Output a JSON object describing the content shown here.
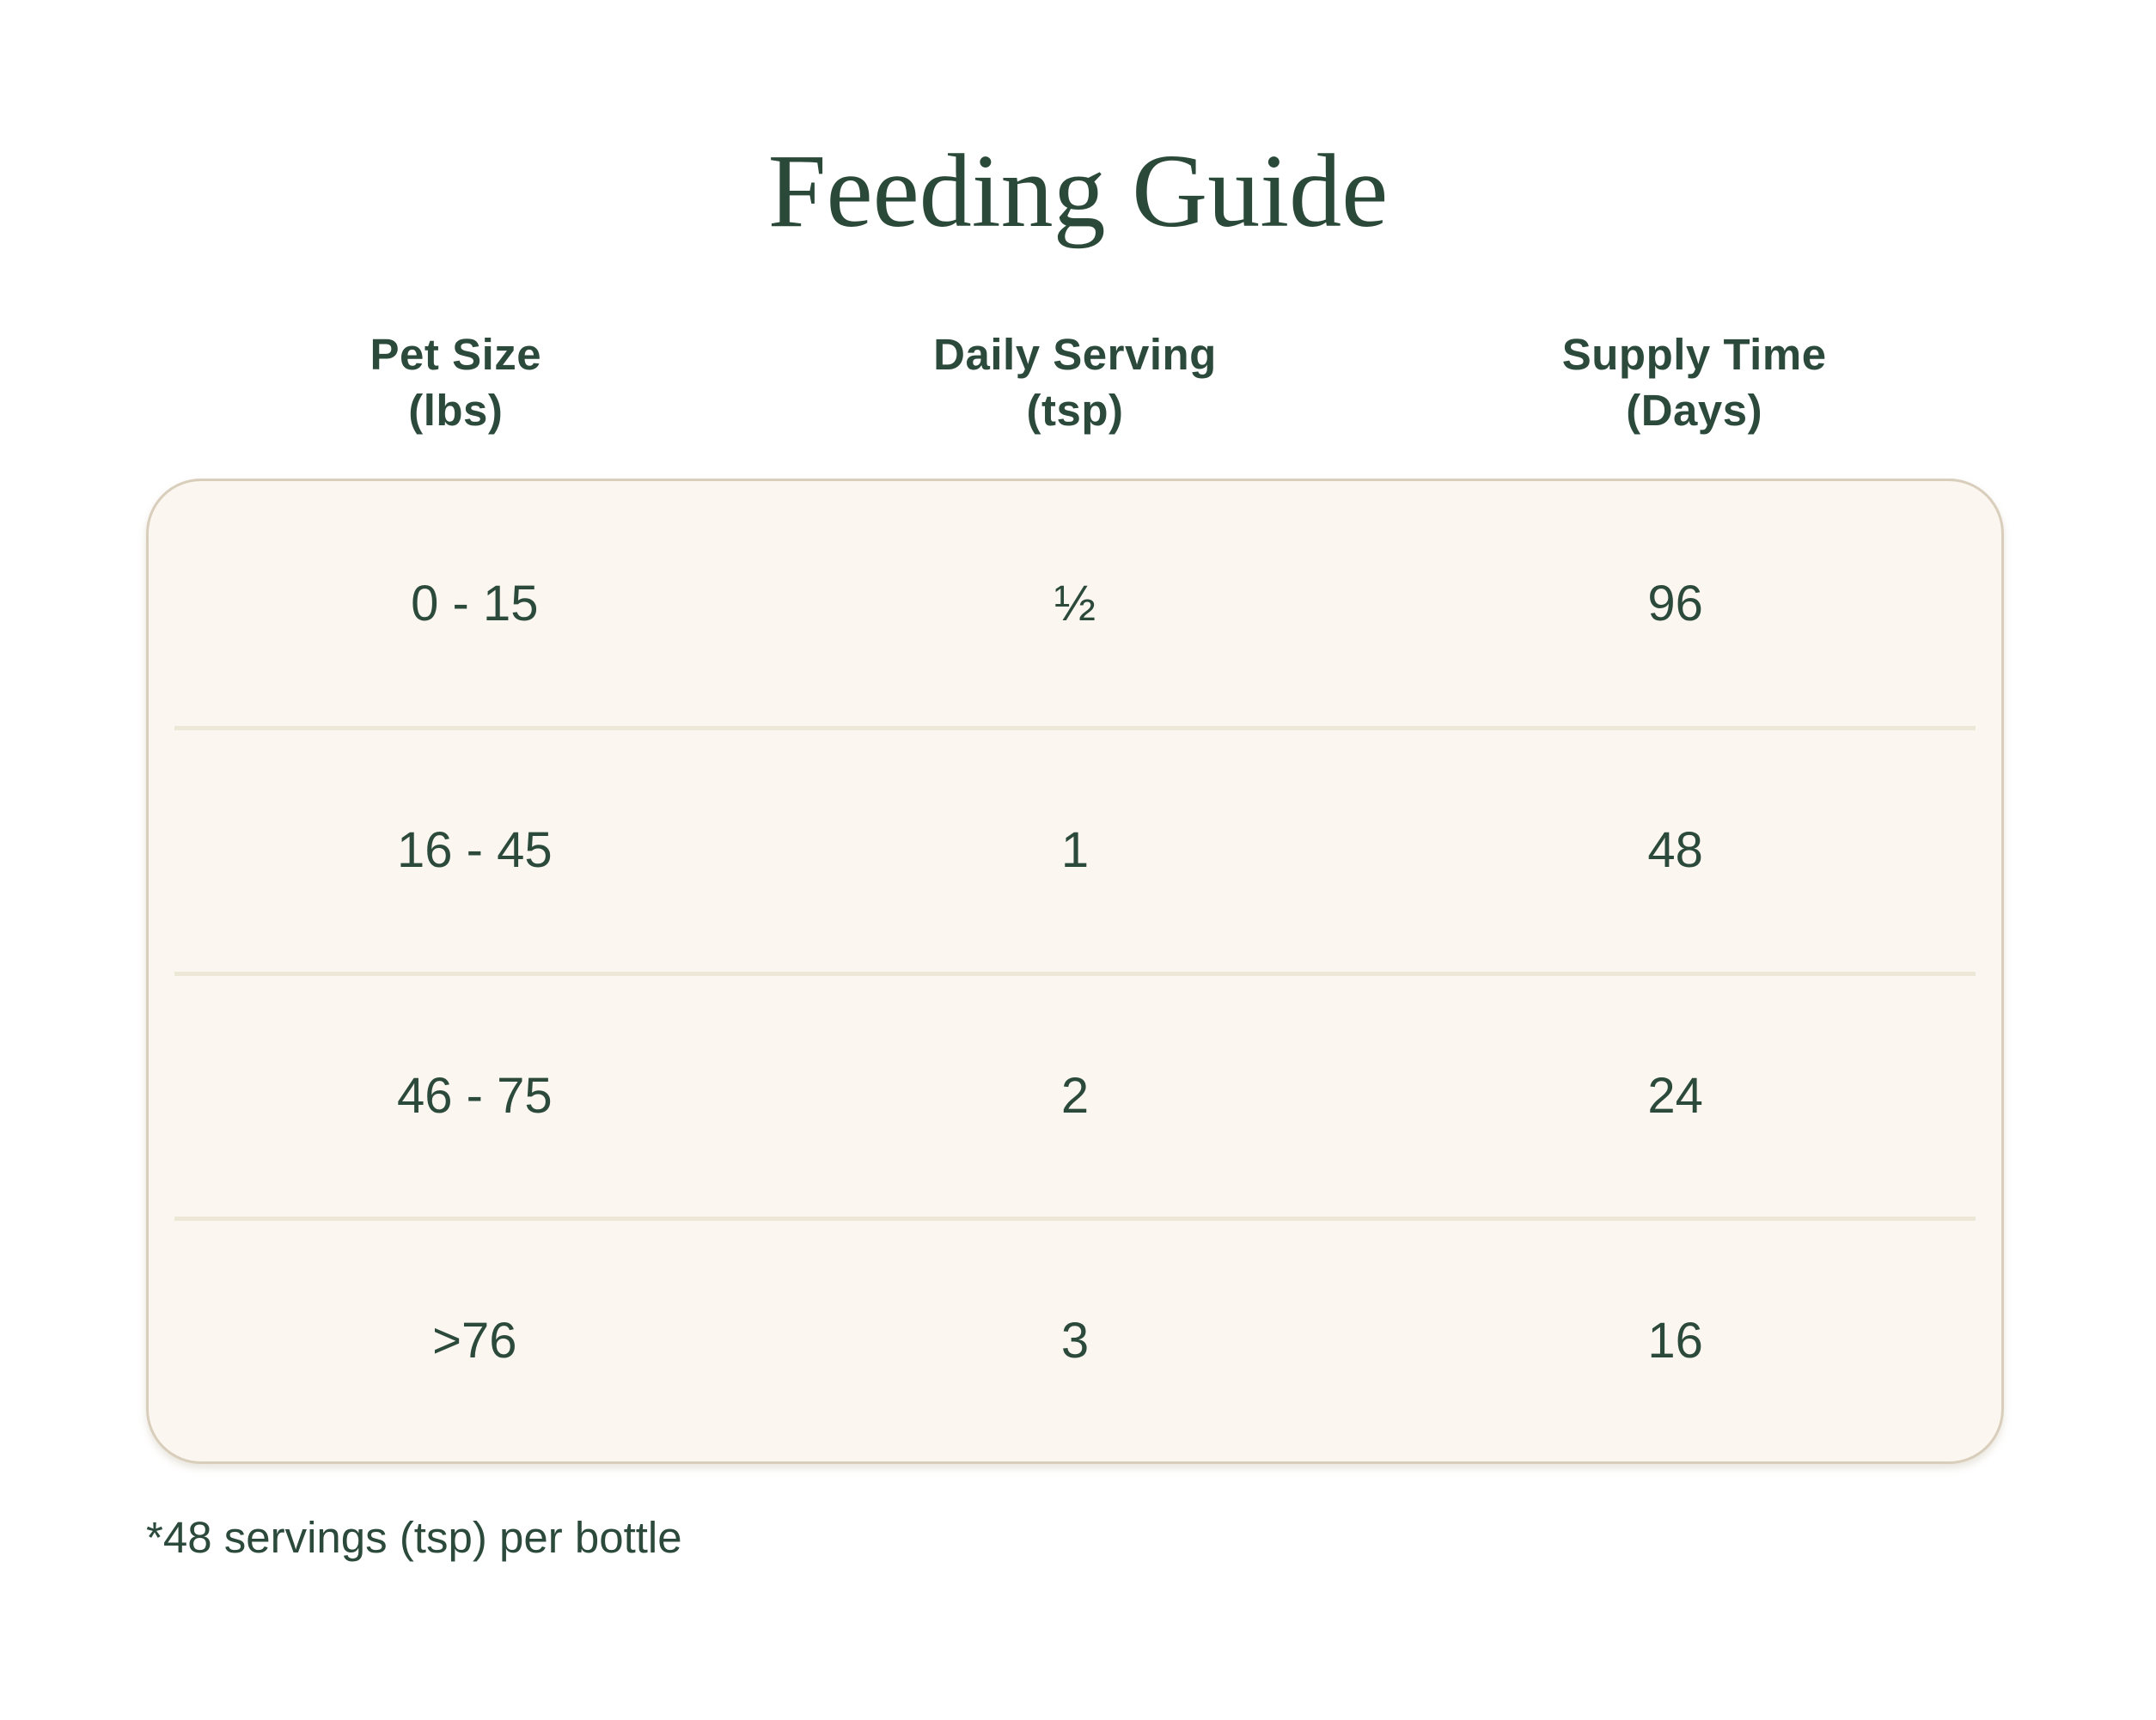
{
  "title": "Feeding Guide",
  "chart_data": {
    "type": "table",
    "title": "Feeding Guide",
    "columns": [
      "Pet Size (lbs)",
      "Daily Serving (tsp)",
      "Supply Time (Days)"
    ],
    "rows": [
      [
        "0 - 15",
        "½",
        "96"
      ],
      [
        "16 - 45",
        "1",
        "48"
      ],
      [
        "46 - 75",
        "2",
        "24"
      ],
      [
        ">76",
        "3",
        "16"
      ]
    ],
    "footnote": "*48 servings (tsp) per bottle"
  },
  "headers": [
    {
      "line1": "Pet Size",
      "line2": "(lbs)"
    },
    {
      "line1": "Daily Serving",
      "line2": "(tsp)"
    },
    {
      "line1": "Supply Time",
      "line2": "(Days)"
    }
  ],
  "rows": [
    {
      "cells": [
        "0 - 15",
        "½",
        "96"
      ]
    },
    {
      "cells": [
        "16 - 45",
        "1",
        "48"
      ]
    },
    {
      "cells": [
        "46 - 75",
        "2",
        "24"
      ]
    },
    {
      "cells": [
        ">76",
        "3",
        "16"
      ]
    }
  ],
  "footnote": "*48 servings (tsp) per bottle",
  "colors": {
    "text_green": "#2C4A3B",
    "title_green": "#2B4939",
    "card_background": "#FBF6EF",
    "card_border": "#D9CEBB",
    "row_divider": "#EDE7D8",
    "page_background": "#FFFFFF"
  }
}
